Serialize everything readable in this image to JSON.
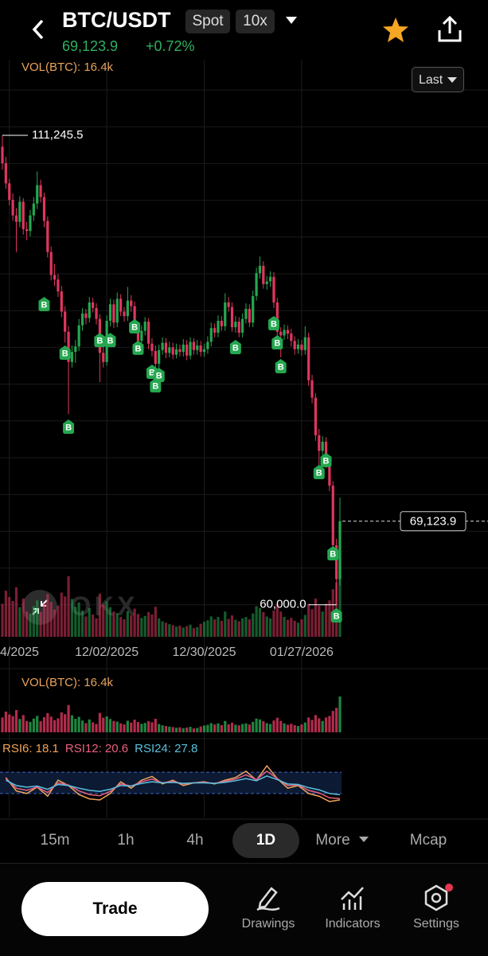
{
  "header": {
    "symbol": "BTC/USDT",
    "market": "Spot",
    "leverage": "10x",
    "last_price": "69,123.9",
    "change": "+0.72%"
  },
  "chart_data": {
    "type": "candlestick",
    "price_type": "Last",
    "watermark": "OKX",
    "colors": {
      "up": "#25a750",
      "down": "#e0365f"
    },
    "ylim": [
      56500,
      119500
    ],
    "xlim": [
      0,
      97
    ],
    "xticks": [
      {
        "value": 2,
        "label": "4/2025"
      },
      {
        "value": 30,
        "label": "12/02/2025"
      },
      {
        "value": 58,
        "label": "12/30/2025"
      },
      {
        "value": 86,
        "label": "01/27/2026"
      }
    ],
    "high_label": {
      "value": 111245.5,
      "label": "111,245.5"
    },
    "low_label": {
      "value": 60000,
      "label": "60,000.0"
    },
    "last_label": {
      "value": 69123.9,
      "label": "69,123.9"
    },
    "candles": [
      [
        110000,
        111245.5,
        107500,
        108200
      ],
      [
        108200,
        108900,
        105400,
        106000
      ],
      [
        106000,
        106500,
        103600,
        104200
      ],
      [
        104200,
        104900,
        101900,
        102500
      ],
      [
        102500,
        103300,
        98500,
        101800
      ],
      [
        101800,
        104600,
        101200,
        104000
      ],
      [
        104000,
        104400,
        100400,
        101000
      ],
      [
        101000,
        101800,
        99800,
        100800
      ],
      [
        100800,
        103100,
        100200,
        102500
      ],
      [
        102500,
        104500,
        101900,
        103800
      ],
      [
        103800,
        107300,
        103200,
        105800
      ],
      [
        105800,
        106400,
        103900,
        104500
      ],
      [
        104500,
        105000,
        101200,
        101900
      ],
      [
        101900,
        102400,
        97900,
        98500
      ],
      [
        98500,
        99100,
        95400,
        96000
      ],
      [
        96000,
        97200,
        94800,
        95500
      ],
      [
        95500,
        96100,
        93600,
        94200
      ],
      [
        94200,
        94800,
        91400,
        92000
      ],
      [
        92000,
        92600,
        88600,
        89800
      ],
      [
        89800,
        90400,
        80800,
        86500
      ],
      [
        86500,
        88300,
        85900,
        87600
      ],
      [
        87600,
        88900,
        86400,
        88200
      ],
      [
        88200,
        91200,
        87700,
        90500
      ],
      [
        90500,
        92400,
        89900,
        91800
      ],
      [
        91800,
        92300,
        90600,
        91300
      ],
      [
        91300,
        93600,
        90800,
        93000
      ],
      [
        93000,
        93500,
        91900,
        92400
      ],
      [
        92400,
        92900,
        90600,
        91200
      ],
      [
        91200,
        91700,
        84300,
        87500
      ],
      [
        87500,
        88100,
        85900,
        86500
      ],
      [
        86500,
        91600,
        86100,
        91000
      ],
      [
        91000,
        93400,
        90400,
        92800
      ],
      [
        92800,
        93300,
        90200,
        90800
      ],
      [
        90800,
        94100,
        90300,
        93400
      ],
      [
        93400,
        93900,
        91500,
        92000
      ],
      [
        92000,
        92500,
        90900,
        91500
      ],
      [
        91500,
        94700,
        91000,
        93200
      ],
      [
        93200,
        93800,
        92000,
        92600
      ],
      [
        92600,
        93100,
        89600,
        90200
      ],
      [
        90200,
        90700,
        88200,
        88800
      ],
      [
        88800,
        90500,
        88300,
        89900
      ],
      [
        89900,
        91400,
        89400,
        90900
      ],
      [
        90900,
        91300,
        87900,
        88500
      ],
      [
        88500,
        89100,
        87100,
        87700
      ],
      [
        87700,
        88300,
        85700,
        86300
      ],
      [
        86300,
        88400,
        85800,
        87800
      ],
      [
        87800,
        89200,
        87300,
        88600
      ],
      [
        88600,
        89100,
        86900,
        87500
      ],
      [
        87500,
        88700,
        87000,
        88100
      ],
      [
        88100,
        88600,
        86800,
        87300
      ],
      [
        87300,
        88500,
        86900,
        87900
      ],
      [
        87900,
        88400,
        87100,
        87600
      ],
      [
        87600,
        89000,
        87100,
        88400
      ],
      [
        88400,
        88900,
        86700,
        87200
      ],
      [
        87200,
        89200,
        86800,
        88700
      ],
      [
        88700,
        89100,
        87300,
        87800
      ],
      [
        87800,
        88900,
        87300,
        88300
      ],
      [
        88300,
        88800,
        87100,
        87600
      ],
      [
        87600,
        88500,
        87100,
        87900
      ],
      [
        87900,
        89300,
        87400,
        88700
      ],
      [
        88700,
        90800,
        88200,
        90200
      ],
      [
        90200,
        90700,
        89200,
        89700
      ],
      [
        89700,
        91600,
        89200,
        91000
      ],
      [
        91000,
        91500,
        89900,
        90400
      ],
      [
        90400,
        94000,
        89900,
        93000
      ],
      [
        93000,
        93600,
        92000,
        92500
      ],
      [
        92500,
        93000,
        89800,
        90300
      ],
      [
        90300,
        91500,
        89700,
        90900
      ],
      [
        90900,
        91400,
        89200,
        89700
      ],
      [
        89700,
        91800,
        89200,
        91200
      ],
      [
        91200,
        92900,
        90700,
        92300
      ],
      [
        92300,
        92800,
        90300,
        90800
      ],
      [
        90800,
        94300,
        90300,
        93700
      ],
      [
        93700,
        96800,
        93200,
        96200
      ],
      [
        96200,
        98000,
        95600,
        97000
      ],
      [
        97000,
        97500,
        94500,
        95000
      ],
      [
        95000,
        95900,
        94400,
        95300
      ],
      [
        95300,
        96400,
        94700,
        95800
      ],
      [
        95800,
        96300,
        92400,
        93000
      ],
      [
        93000,
        93500,
        89300,
        89800
      ],
      [
        89800,
        90300,
        87000,
        89400
      ],
      [
        89400,
        90600,
        88900,
        90000
      ],
      [
        90000,
        90500,
        89000,
        89600
      ],
      [
        89600,
        90100,
        88200,
        88800
      ],
      [
        88800,
        89300,
        87300,
        87900
      ],
      [
        87900,
        89000,
        87400,
        88400
      ],
      [
        88400,
        88900,
        87200,
        87800
      ],
      [
        87800,
        90400,
        87300,
        89200
      ],
      [
        89200,
        89700,
        83900,
        84500
      ],
      [
        84500,
        85100,
        82000,
        82600
      ],
      [
        82600,
        83100,
        77900,
        78500
      ],
      [
        78500,
        79200,
        74500,
        76800
      ],
      [
        76800,
        78400,
        75900,
        77800
      ],
      [
        77800,
        78300,
        74900,
        75500
      ],
      [
        75500,
        76000,
        72400,
        73000
      ],
      [
        73000,
        73500,
        65500,
        66500
      ],
      [
        66500,
        67200,
        60000,
        62800
      ],
      [
        62800,
        71700,
        62100,
        69123.9
      ]
    ],
    "buy_markers": {
      "label": "B",
      "points": [
        [
          12,
          92820
        ],
        [
          18,
          87520
        ],
        [
          19,
          79440
        ],
        [
          28,
          88900
        ],
        [
          31,
          88900
        ],
        [
          38,
          90400
        ],
        [
          39,
          88050
        ],
        [
          43,
          85440
        ],
        [
          44,
          83960
        ],
        [
          45,
          85090
        ],
        [
          67,
          88130
        ],
        [
          78,
          90740
        ],
        [
          79,
          88650
        ],
        [
          80,
          86050
        ],
        [
          91,
          74490
        ],
        [
          93,
          75800
        ],
        [
          95,
          65620
        ],
        [
          96,
          58850
        ]
      ]
    },
    "volume": {
      "label": "VOL(BTC): 16.4k",
      "values": [
        6.8,
        9.5,
        8.2,
        7.4,
        10.2,
        6.1,
        7.9,
        5.2,
        4.8,
        6.3,
        7.5,
        5.1,
        6.9,
        8.8,
        7.2,
        5.6,
        6.4,
        9.1,
        8.3,
        12.5,
        7.8,
        6.2,
        7.1,
        5.4,
        4.2,
        5.9,
        4.6,
        3.8,
        8.9,
        6.7,
        7.3,
        6.1,
        5.2,
        4.9,
        4.1,
        3.6,
        5.3,
        4.4,
        5.8,
        4.7,
        3.9,
        4.3,
        5.1,
        4.6,
        6.2,
        3.8,
        3.2,
        2.9,
        2.6,
        2.4,
        2.1,
        2.3,
        1.9,
        2.2,
        2.5,
        1.8,
        2.0,
        2.7,
        3.1,
        3.4,
        4.2,
        3.6,
        4.1,
        3.3,
        5.2,
        3.7,
        4.4,
        3.5,
        3.2,
        3.8,
        4.1,
        3.6,
        4.8,
        6.3,
        5.9,
        5.1,
        4.2,
        3.8,
        5.4,
        6.7,
        5.2,
        4.1,
        3.5,
        3.9,
        3.3,
        2.9,
        3.6,
        4.5,
        6.8,
        5.7,
        7.9,
        6.4,
        5.2,
        6.8,
        7.5,
        9.8,
        11.2,
        16.4
      ]
    },
    "rsi": {
      "ylim": [
        0,
        100
      ],
      "levels": [
        30,
        70
      ],
      "x": [
        1,
        4,
        7,
        10,
        13,
        16,
        19,
        22,
        25,
        28,
        31,
        34,
        37,
        40,
        43,
        46,
        49,
        52,
        55,
        58,
        61,
        64,
        67,
        70,
        73,
        76,
        79,
        82,
        85,
        88,
        91,
        94,
        97
      ],
      "series": [
        {
          "label": "RSI6: 18.1",
          "color": "#f0a35a",
          "values": [
            60,
            35,
            30,
            42,
            25,
            55,
            45,
            28,
            20,
            18,
            30,
            52,
            40,
            55,
            62,
            48,
            55,
            45,
            50,
            52,
            48,
            55,
            60,
            72,
            55,
            82,
            58,
            40,
            45,
            30,
            25,
            15,
            18.1
          ]
        },
        {
          "label": "RSI12: 20.6",
          "color": "#e8607f",
          "values": [
            58,
            40,
            36,
            42,
            32,
            50,
            46,
            35,
            28,
            26,
            34,
            48,
            44,
            52,
            57,
            50,
            53,
            48,
            50,
            51,
            49,
            53,
            57,
            65,
            56,
            72,
            58,
            45,
            46,
            36,
            31,
            22,
            20.6
          ]
        },
        {
          "label": "RSI24: 27.8",
          "color": "#5bc0de",
          "values": [
            55,
            45,
            42,
            44,
            38,
            47,
            45,
            40,
            36,
            34,
            38,
            45,
            44,
            49,
            52,
            50,
            51,
            49,
            50,
            50,
            49,
            51,
            54,
            58,
            54,
            63,
            56,
            48,
            47,
            41,
            37,
            30,
            27.8
          ]
        }
      ]
    }
  },
  "timeframes": [
    "15m",
    "1h",
    "4h",
    "1D",
    "More",
    "Mcap"
  ],
  "bottom_bar": {
    "trade": "Trade",
    "tools": [
      "Drawings",
      "Indicators",
      "Settings"
    ]
  }
}
